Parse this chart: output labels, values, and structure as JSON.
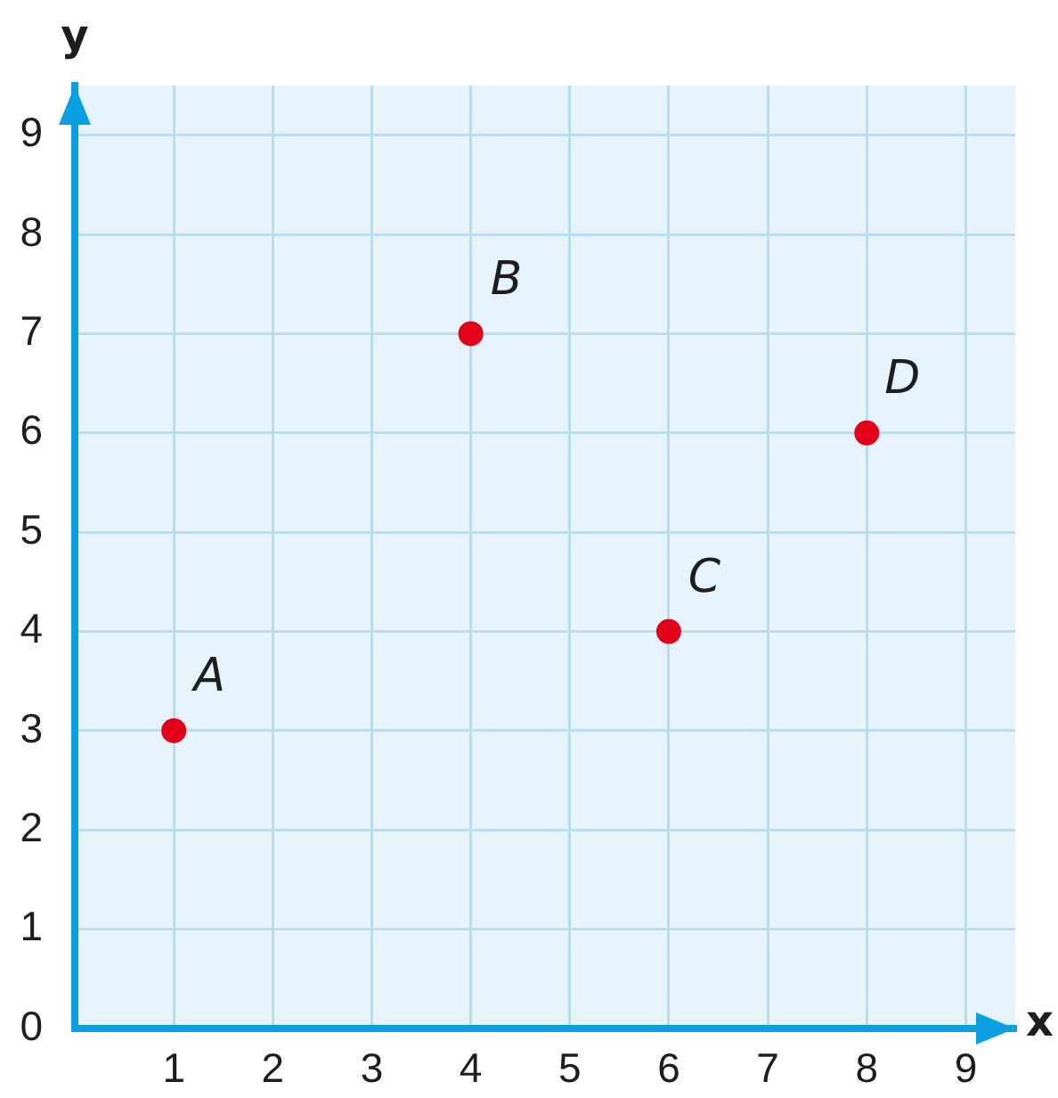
{
  "chart_data": {
    "type": "scatter",
    "xlabel": "x",
    "ylabel": "y",
    "x": [
      1,
      4,
      6,
      8
    ],
    "values": [
      3,
      7,
      4,
      6
    ],
    "color": "#e2001a",
    "marker": "circle",
    "xlim": [
      0,
      9.5
    ],
    "ylim": [
      0,
      9.5
    ],
    "xticks": [
      1,
      2,
      3,
      4,
      5,
      6,
      7,
      8,
      9
    ],
    "yticks": [
      0,
      1,
      2,
      3,
      4,
      5,
      6,
      7,
      8,
      9
    ],
    "grid": true,
    "annotations": [
      {
        "text": "A",
        "x": 1,
        "y": 3
      },
      {
        "text": "B",
        "x": 4,
        "y": 7
      },
      {
        "text": "C",
        "x": 6,
        "y": 4
      },
      {
        "text": "D",
        "x": 8,
        "y": 6
      }
    ]
  }
}
